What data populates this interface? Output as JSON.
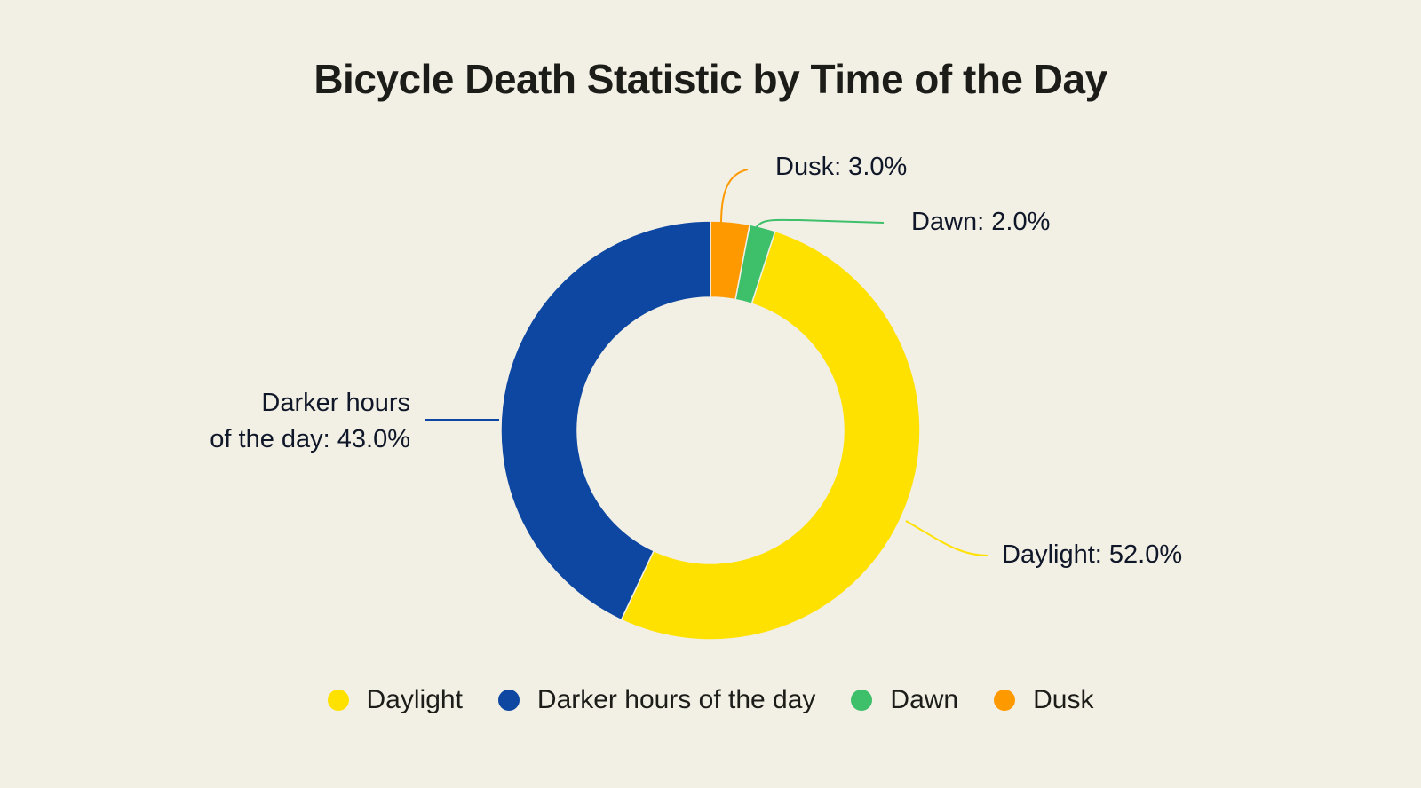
{
  "title": "Bicycle Death Statistic by Time of the Day",
  "labels": {
    "dusk": "Dusk: 3.0%",
    "dawn": "Dawn: 2.0%",
    "darker_line1": "Darker hours",
    "darker_line2": "of the day: 43.0%",
    "daylight": "Daylight: 52.0%"
  },
  "legend": [
    {
      "label": "Daylight",
      "color": "#ffe100"
    },
    {
      "label": "Darker hours of the day",
      "color": "#0d47a1"
    },
    {
      "label": "Dawn",
      "color": "#3ec06b"
    },
    {
      "label": "Dusk",
      "color": "#ff9900"
    }
  ],
  "chart_data": {
    "type": "pie",
    "subtype": "donut",
    "title": "Bicycle Death Statistic by Time of the Day",
    "categories": [
      "Daylight",
      "Darker hours of the day",
      "Dawn",
      "Dusk"
    ],
    "values": [
      52.0,
      43.0,
      2.0,
      3.0
    ],
    "unit": "%",
    "colors": [
      "#ffe100",
      "#0d47a1",
      "#3ec06b",
      "#ff9900"
    ],
    "data_labels": [
      "Daylight: 52.0%",
      "Darker hours of the day: 43.0%",
      "Dawn: 2.0%",
      "Dusk: 3.0%"
    ],
    "legend_position": "bottom"
  }
}
